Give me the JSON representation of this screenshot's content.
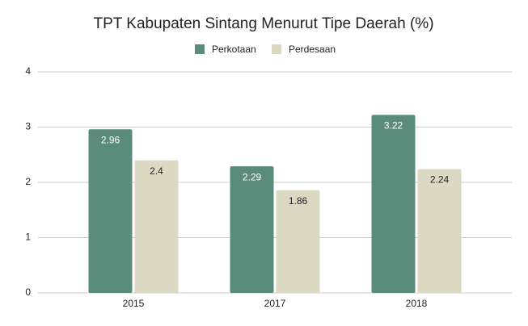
{
  "chart_data": {
    "type": "bar",
    "title": "TPT Kabupaten Sintang Menurut Tipe Daerah (%)",
    "categories": [
      "2015",
      "2017",
      "2018"
    ],
    "series": [
      {
        "name": "Perkotaan",
        "color": "#5b8c7b",
        "values": [
          2.96,
          2.29,
          3.22
        ]
      },
      {
        "name": "Perdesaan",
        "color": "#dcd9c2",
        "values": [
          2.4,
          1.86,
          2.24
        ]
      }
    ],
    "ylim": [
      0,
      4
    ],
    "yticks": [
      0,
      1,
      2,
      3,
      4
    ],
    "grid": true,
    "legend": "top"
  }
}
